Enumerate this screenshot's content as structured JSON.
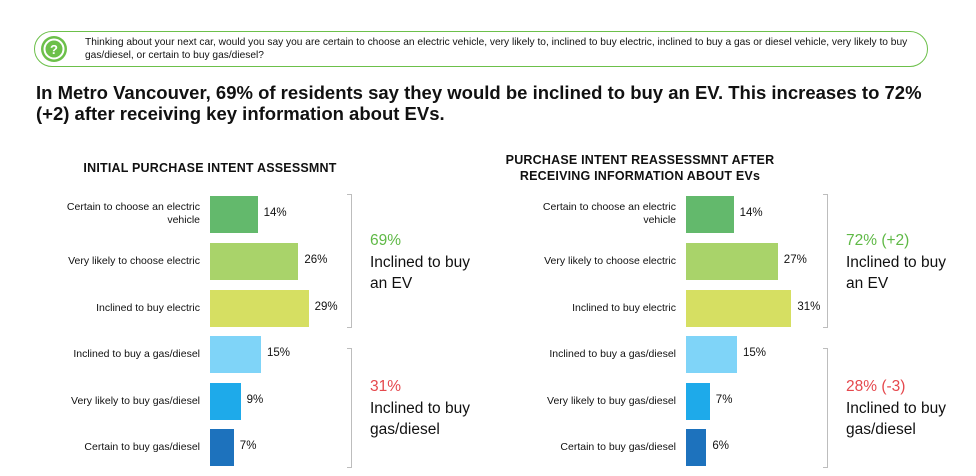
{
  "question": {
    "icon": "question-mark-icon",
    "text": "Thinking about your next car, would you say you are certain to choose an electric vehicle, very likely to, inclined to buy electric, inclined to buy a gas or diesel vehicle, very likely to buy gas/diesel, or certain to buy gas/diesel?"
  },
  "headline": "In Metro Vancouver, 69% of residents say they would be inclined to buy an EV. This increases to 72% (+2) after receiving key information about EVs.",
  "colors": {
    "certain_ev": "#63b96c",
    "very_likely_ev": "#a9d36a",
    "inclined_ev": "#d6df62",
    "inclined_gas": "#7fd4f8",
    "very_likely_gas": "#1eaaea",
    "certain_gas": "#1d72bd",
    "ev_annotation": "#5fb946",
    "gas_annotation": "#e5484d"
  },
  "chart_data": [
    {
      "type": "bar",
      "orientation": "horizontal",
      "title": "INITIAL PURCHASE INTENT ASSESSMNT",
      "categories": [
        "Certain to choose an electric vehicle",
        "Very likely to choose electric",
        "Inclined to buy electric",
        "Inclined to buy a gas/diesel",
        "Very likely to buy gas/diesel",
        "Certain to buy gas/diesel"
      ],
      "values": [
        14,
        26,
        29,
        15,
        9,
        7
      ],
      "value_labels": [
        "14%",
        "26%",
        "29%",
        "15%",
        "9%",
        "7%"
      ],
      "annotations": [
        {
          "value": "69%",
          "text": "Inclined to buy an EV"
        },
        {
          "value": "31%",
          "text": "Inclined to buy gas/diesel"
        }
      ]
    },
    {
      "type": "bar",
      "orientation": "horizontal",
      "title": "PURCHASE INTENT REASSESSMNT AFTER RECEIVING INFORMATION ABOUT EVs",
      "categories": [
        "Certain to choose an electric vehicle",
        "Very likely to choose electric",
        "Inclined to buy electric",
        "Inclined to buy a gas/diesel",
        "Very likely to buy gas/diesel",
        "Certain to buy gas/diesel"
      ],
      "values": [
        14,
        27,
        31,
        15,
        7,
        6
      ],
      "value_labels": [
        "14%",
        "27%",
        "31%",
        "15%",
        "7%",
        "6%"
      ],
      "annotations": [
        {
          "value": "72% (+2)",
          "text": "Inclined to buy an EV"
        },
        {
          "value": "28% (-3)",
          "text": "Inclined to buy gas/diesel"
        }
      ]
    }
  ]
}
